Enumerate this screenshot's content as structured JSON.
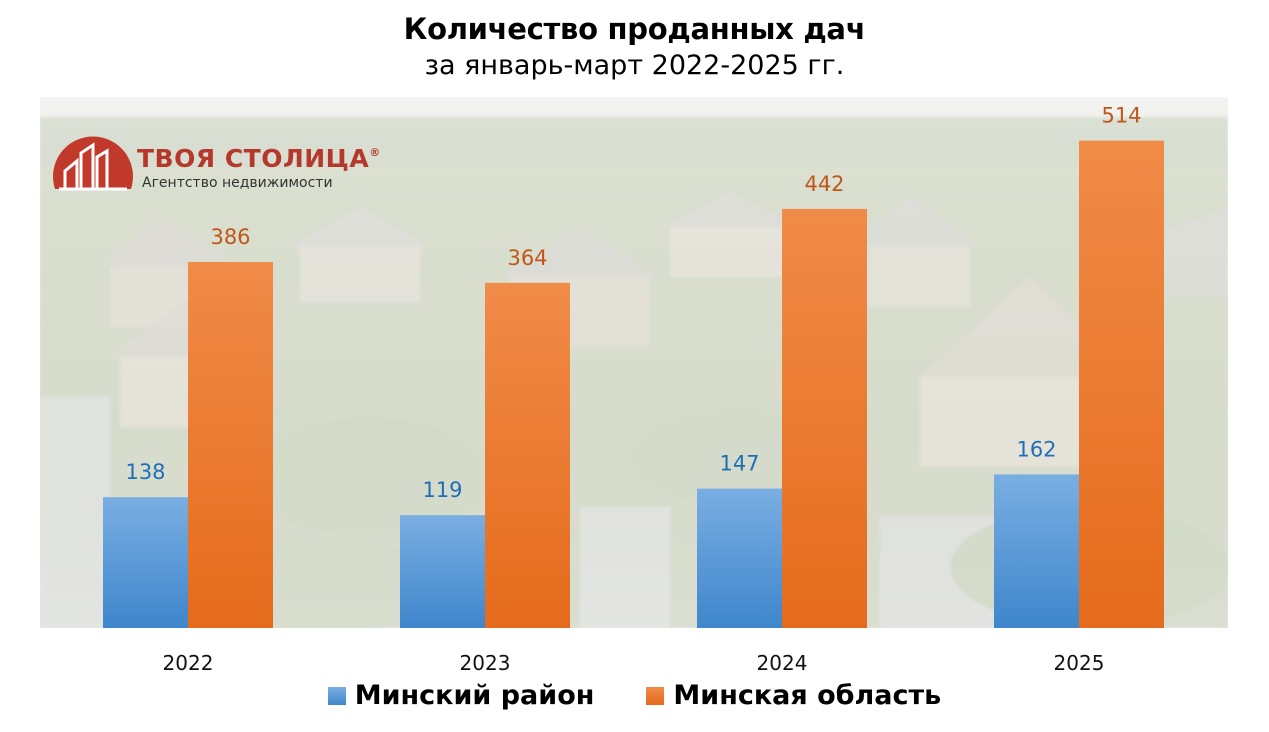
{
  "chart_data": {
    "type": "bar",
    "title": "Количество проданных дач",
    "subtitle": "за январь-март 2022-2025 гг.",
    "categories": [
      "2022",
      "2023",
      "2024",
      "2025"
    ],
    "series": [
      {
        "name": "Минский район",
        "values": [
          138,
          119,
          147,
          162
        ],
        "color": "#5b9bd5"
      },
      {
        "name": "Минская область",
        "values": [
          386,
          364,
          442,
          514
        ],
        "color": "#ed7d31"
      }
    ],
    "label_colors": [
      "#1f6fb8",
      "#c0561a"
    ],
    "ylim": [
      0,
      560
    ],
    "grid": false,
    "legend": "bottom-center",
    "xlabel": "",
    "ylabel": ""
  },
  "logo": {
    "name": "ТВОЯ СТОЛИЦА",
    "registered": "®",
    "tagline": "Агентство недвижимости",
    "color": "#c0392b"
  }
}
